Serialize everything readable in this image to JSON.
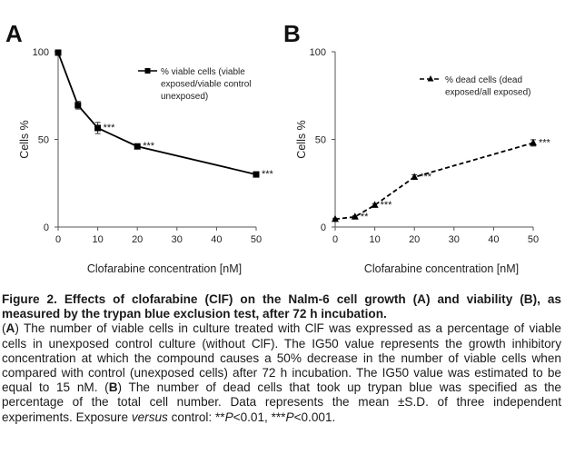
{
  "chart_data": [
    {
      "panel": "A",
      "type": "line",
      "line_style": "solid",
      "marker": "square",
      "color": "#000000",
      "xlabel": "Clofarabine concentration [nM]",
      "ylabel": "Cells %",
      "xlim": [
        0,
        50
      ],
      "ylim": [
        0,
        100
      ],
      "xticks": [
        "0",
        "10",
        "20",
        "30",
        "40",
        "50"
      ],
      "yticks": [
        "0",
        "50",
        "100"
      ],
      "grid": false,
      "legend_position": "top-right",
      "legend_lines": [
        "% viable cells (viable",
        "exposed/viable control",
        "unexposed)"
      ],
      "series": [
        {
          "x": [
            0,
            5,
            10,
            20,
            50
          ],
          "y": [
            99.5,
            69.5,
            56.5,
            46,
            30
          ],
          "err": [
            0.6,
            2.2,
            3.2,
            0.8,
            0.8
          ],
          "sig": [
            "",
            "",
            "***",
            "***",
            "***"
          ]
        }
      ]
    },
    {
      "panel": "B",
      "type": "line",
      "line_style": "dashed",
      "marker": "triangle",
      "color": "#000000",
      "xlabel": "Clofarabine concentration [nM]",
      "ylabel": "Cells %",
      "xlim": [
        0,
        50
      ],
      "ylim": [
        0,
        100
      ],
      "xticks": [
        "0",
        "10",
        "20",
        "30",
        "40",
        "50"
      ],
      "yticks": [
        "0",
        "50",
        "100"
      ],
      "grid": false,
      "legend_position": "top-right",
      "legend_lines": [
        "% dead cells (dead",
        "exposed/all exposed)"
      ],
      "series": [
        {
          "x": [
            0,
            5,
            10,
            20,
            50
          ],
          "y": [
            4.5,
            5.8,
            12.5,
            28.5,
            48
          ],
          "err": [
            0.5,
            0.6,
            0.8,
            1.3,
            1.8
          ],
          "sig": [
            "",
            "**",
            "***",
            "***",
            "***"
          ]
        }
      ]
    }
  ],
  "caption": {
    "title": "Figure 2. Effects of clofarabine (ClF) on the Nalm-6 cell growth (A) and viability (B), as measured by the trypan blue exclusion test, after 72 h incubation.",
    "p1_a": "A",
    "p1_text": ") The number of viable cells in culture treated with ClF was expressed as a percentage of viable cells in unexposed control culture (without ClF). The IG50 value represents the growth inhibitory concentration at which the compound causes a 50% decrease in the number of viable cells when compared with control (unexposed cells) after 72 h incubation. The IG50 value was estimated to be equal to 15 nM. (",
    "p1_b": "B",
    "p1_text2": ") The number of dead cells that took up trypan blue was specified as the percentage of the total cell number. Data represents the mean ±S.D. of three independent experiments. Exposure ",
    "p1_versus": "versus",
    "p1_text3": " control: **",
    "p1_p1": "P",
    "p1_text4": "<0.01, ***",
    "p1_p2": "P",
    "p1_text5": "<0.001."
  }
}
